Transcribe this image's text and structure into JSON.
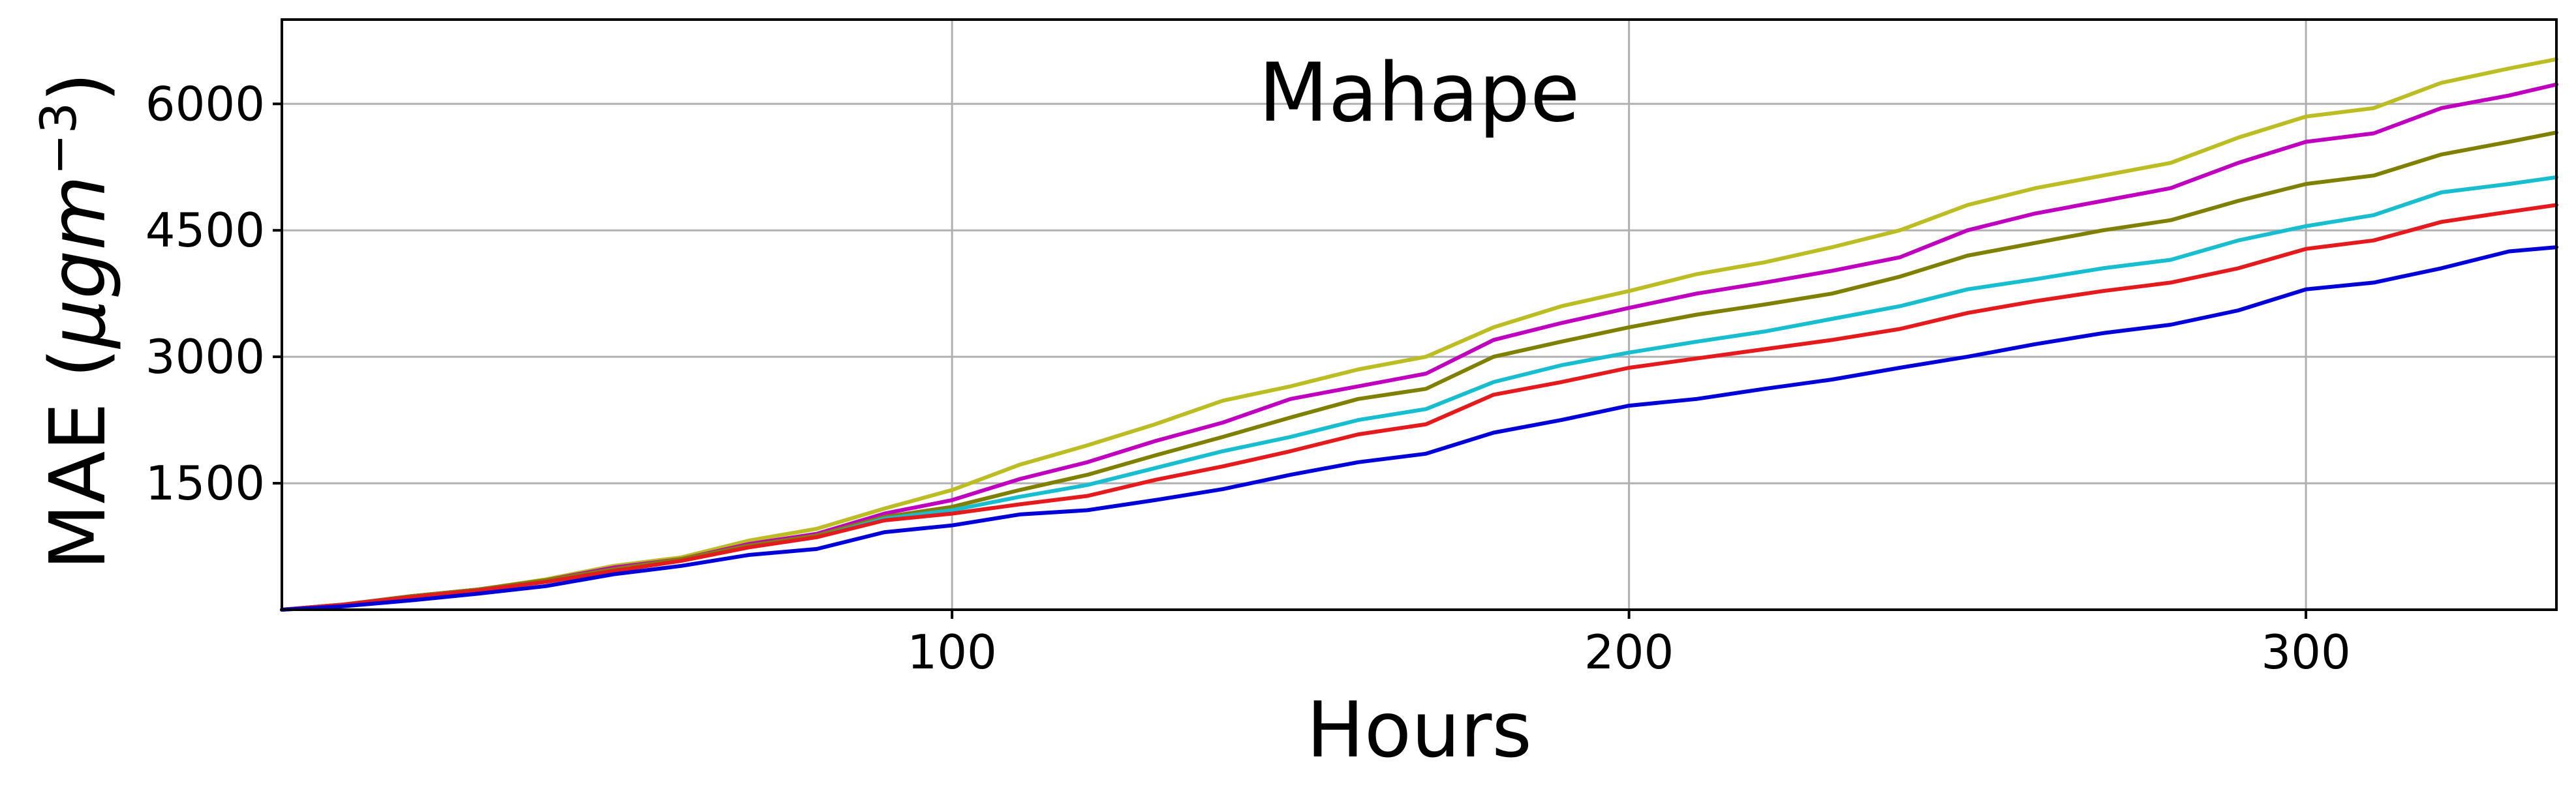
{
  "chart_data": {
    "type": "line",
    "title": "Mahape",
    "xlabel": "Hours",
    "ylabel_prefix": "MAE (",
    "ylabel_mu": "μ",
    "ylabel_unit": "gm",
    "ylabel_exp": "−3",
    "ylabel_suffix": ")",
    "xlim": [
      1,
      337
    ],
    "ylim": [
      0,
      7000
    ],
    "xticks": [
      100,
      200,
      300
    ],
    "xtick_labels": [
      "100",
      "200",
      "300"
    ],
    "yticks": [
      1500,
      3000,
      4500,
      6000
    ],
    "ytick_labels": [
      "1500",
      "3000",
      "4500",
      "6000"
    ],
    "grid": true,
    "x": [
      1,
      10,
      20,
      30,
      40,
      50,
      60,
      70,
      80,
      90,
      100,
      110,
      120,
      130,
      140,
      150,
      160,
      170,
      180,
      190,
      200,
      210,
      220,
      230,
      240,
      250,
      260,
      270,
      280,
      290,
      300,
      310,
      320,
      330,
      337
    ],
    "series": [
      {
        "color": "#bcbd22",
        "values": [
          0,
          60,
          160,
          240,
          360,
          520,
          620,
          820,
          960,
          1200,
          1420,
          1720,
          1950,
          2200,
          2480,
          2650,
          2850,
          3000,
          3350,
          3600,
          3780,
          3980,
          4120,
          4300,
          4500,
          4800,
          5000,
          5150,
          5300,
          5600,
          5850,
          5950,
          6250,
          6420,
          6530
        ]
      },
      {
        "color": "#bf00bf",
        "values": [
          0,
          60,
          160,
          240,
          350,
          500,
          600,
          780,
          900,
          1140,
          1300,
          1550,
          1750,
          2000,
          2220,
          2500,
          2650,
          2800,
          3200,
          3400,
          3580,
          3750,
          3880,
          4020,
          4180,
          4500,
          4700,
          4850,
          5000,
          5300,
          5550,
          5650,
          5950,
          6100,
          6230
        ]
      },
      {
        "color": "#808000",
        "values": [
          0,
          60,
          160,
          240,
          350,
          480,
          600,
          760,
          880,
          1100,
          1220,
          1420,
          1600,
          1830,
          2050,
          2280,
          2500,
          2620,
          3000,
          3180,
          3350,
          3500,
          3620,
          3750,
          3950,
          4200,
          4350,
          4500,
          4620,
          4850,
          5050,
          5150,
          5400,
          5550,
          5660
        ]
      },
      {
        "color": "#17becf",
        "values": [
          0,
          60,
          150,
          230,
          330,
          460,
          580,
          740,
          860,
          1080,
          1180,
          1340,
          1480,
          1680,
          1880,
          2050,
          2250,
          2380,
          2700,
          2900,
          3050,
          3180,
          3300,
          3450,
          3600,
          3800,
          3920,
          4050,
          4150,
          4380,
          4550,
          4680,
          4950,
          5050,
          5130
        ]
      },
      {
        "color": "#e41a1c",
        "values": [
          0,
          60,
          150,
          230,
          330,
          460,
          580,
          740,
          860,
          1060,
          1140,
          1250,
          1350,
          1540,
          1700,
          1880,
          2080,
          2200,
          2550,
          2700,
          2870,
          2980,
          3090,
          3200,
          3330,
          3520,
          3660,
          3780,
          3880,
          4050,
          4280,
          4380,
          4600,
          4720,
          4800
        ]
      },
      {
        "color": "#0000d9",
        "values": [
          0,
          40,
          110,
          190,
          280,
          420,
          520,
          650,
          720,
          920,
          1000,
          1130,
          1180,
          1300,
          1430,
          1600,
          1750,
          1850,
          2100,
          2250,
          2420,
          2500,
          2620,
          2730,
          2870,
          3000,
          3150,
          3280,
          3380,
          3550,
          3800,
          3880,
          4050,
          4250,
          4300
        ]
      }
    ]
  }
}
